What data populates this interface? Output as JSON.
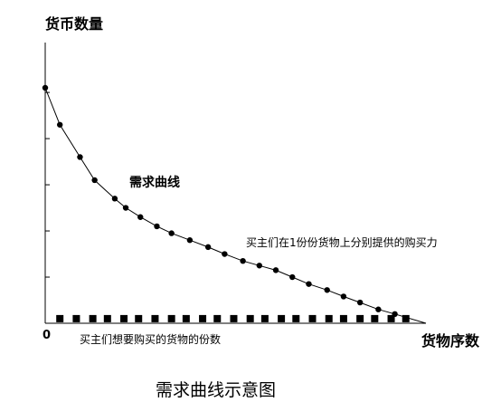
{
  "chart_data": {
    "type": "scatter",
    "title": "需求曲线示意图",
    "ylabel": "货币数量",
    "xlabel": "货物序数",
    "origin_label": "0",
    "ylim": [
      0,
      5.1
    ],
    "xlim": [
      0,
      20.8
    ],
    "grid": false,
    "y_ticks": [
      1,
      2,
      3,
      4,
      5
    ],
    "series": [
      {
        "name": "需求曲线",
        "marker": "circle",
        "x": [
          0,
          0.8,
          1.9,
          2.7,
          3.8,
          4.4,
          5.2,
          6.1,
          6.9,
          7.9,
          8.9,
          9.8,
          10.8,
          11.7,
          12.6,
          13.5,
          14.4,
          15.4,
          16.3,
          17.2,
          18.2,
          19.1
        ],
        "y": [
          5.1,
          4.3,
          3.6,
          3.1,
          2.7,
          2.5,
          2.3,
          2.1,
          1.95,
          1.8,
          1.65,
          1.5,
          1.35,
          1.25,
          1.15,
          1.0,
          0.85,
          0.72,
          0.58,
          0.45,
          0.3,
          0.2
        ]
      },
      {
        "name": "买主们在1份份货物上分别提供的购买力",
        "marker": "none",
        "x": [],
        "y": []
      },
      {
        "name": "买主们想要购买的货物的份数",
        "marker": "square",
        "x": [
          0.8,
          1.7,
          2.6,
          3.4,
          4.3,
          5.1,
          6.0,
          6.9,
          7.7,
          8.6,
          9.4,
          10.3,
          11.2,
          12.0,
          12.9,
          13.7,
          14.6,
          15.5,
          16.3,
          17.2,
          18.0,
          18.9,
          19.7
        ],
        "y": [
          0.1,
          0.1,
          0.1,
          0.1,
          0.1,
          0.1,
          0.1,
          0.1,
          0.1,
          0.1,
          0.1,
          0.1,
          0.1,
          0.1,
          0.1,
          0.1,
          0.1,
          0.1,
          0.1,
          0.1,
          0.1,
          0.1,
          0.1
        ]
      }
    ],
    "colors": {
      "ink": "#000000",
      "background": "#ffffff"
    }
  }
}
